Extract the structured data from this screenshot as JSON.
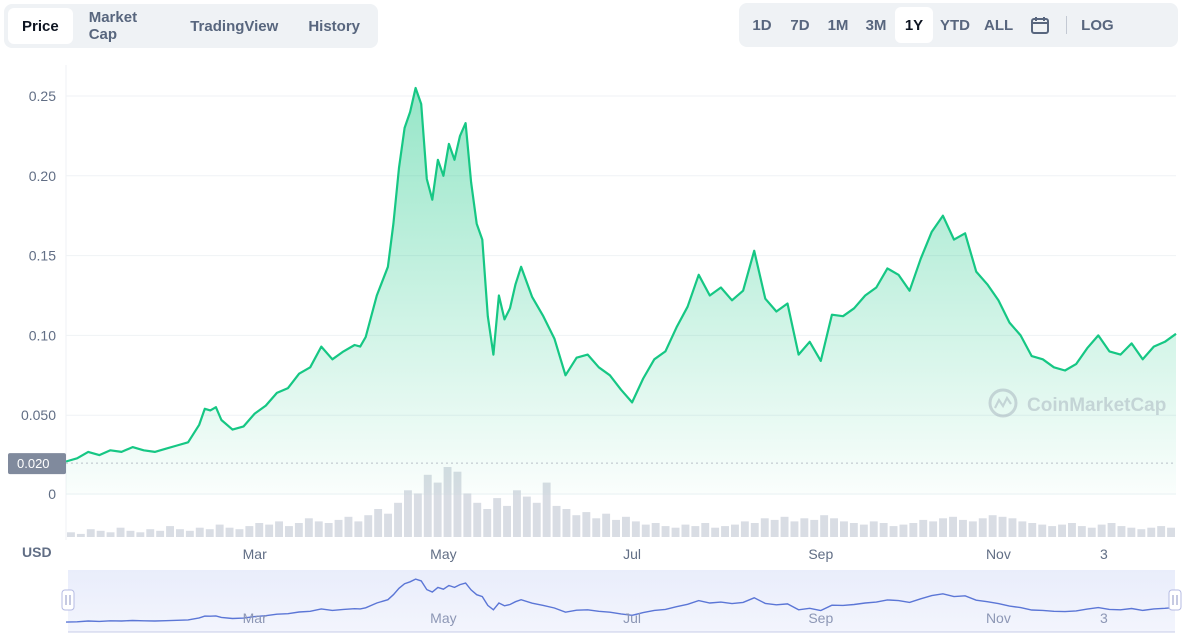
{
  "tabs": [
    {
      "label": "Price",
      "active": true
    },
    {
      "label": "Market Cap",
      "active": false
    },
    {
      "label": "TradingView",
      "active": false
    },
    {
      "label": "History",
      "active": false
    }
  ],
  "ranges": [
    {
      "label": "1D",
      "active": false
    },
    {
      "label": "7D",
      "active": false
    },
    {
      "label": "1M",
      "active": false
    },
    {
      "label": "3M",
      "active": false
    },
    {
      "label": "1Y",
      "active": true
    },
    {
      "label": "YTD",
      "active": false
    },
    {
      "label": "ALL",
      "active": false
    }
  ],
  "log_label": "LOG",
  "currency_label": "USD",
  "watermark": "CoinMarketCap",
  "current_tag": "0.020",
  "colors": {
    "line": "#16c784",
    "navigator": "#5b76d6",
    "tag": "#808a9d"
  },
  "chart_data": {
    "type": "area",
    "y_ticks": [
      "0.25",
      "0.20",
      "0.15",
      "0.10",
      "0.050",
      "0"
    ],
    "y_tick_values": [
      0.25,
      0.2,
      0.15,
      0.1,
      0.05,
      0
    ],
    "ylim": [
      0,
      0.25
    ],
    "x_ticks": [
      "Mar",
      "May",
      "Jul",
      "Sep",
      "Nov",
      "3"
    ],
    "x_tick_pos": [
      0.17,
      0.34,
      0.51,
      0.68,
      0.84,
      0.935
    ],
    "baseline": 0.02,
    "x": [
      0,
      0.01,
      0.02,
      0.03,
      0.04,
      0.05,
      0.06,
      0.07,
      0.08,
      0.09,
      0.1,
      0.11,
      0.12,
      0.125,
      0.13,
      0.135,
      0.14,
      0.15,
      0.16,
      0.17,
      0.18,
      0.19,
      0.2,
      0.21,
      0.22,
      0.23,
      0.24,
      0.25,
      0.26,
      0.265,
      0.27,
      0.28,
      0.29,
      0.295,
      0.3,
      0.305,
      0.31,
      0.315,
      0.32,
      0.325,
      0.33,
      0.335,
      0.34,
      0.345,
      0.35,
      0.355,
      0.36,
      0.365,
      0.37,
      0.375,
      0.38,
      0.385,
      0.39,
      0.395,
      0.4,
      0.405,
      0.41,
      0.42,
      0.43,
      0.44,
      0.45,
      0.46,
      0.47,
      0.48,
      0.49,
      0.5,
      0.51,
      0.52,
      0.53,
      0.54,
      0.55,
      0.56,
      0.57,
      0.58,
      0.59,
      0.6,
      0.61,
      0.62,
      0.63,
      0.64,
      0.65,
      0.66,
      0.67,
      0.68,
      0.69,
      0.7,
      0.71,
      0.72,
      0.73,
      0.74,
      0.75,
      0.76,
      0.77,
      0.78,
      0.79,
      0.8,
      0.81,
      0.82,
      0.83,
      0.84,
      0.85,
      0.86,
      0.87,
      0.88,
      0.89,
      0.9,
      0.91,
      0.92,
      0.93,
      0.94,
      0.95,
      0.96,
      0.97,
      0.98,
      0.99,
      1.0
    ],
    "y": [
      0.021,
      0.023,
      0.027,
      0.025,
      0.028,
      0.027,
      0.03,
      0.028,
      0.027,
      0.029,
      0.031,
      0.033,
      0.044,
      0.054,
      0.053,
      0.055,
      0.047,
      0.041,
      0.043,
      0.051,
      0.056,
      0.064,
      0.067,
      0.076,
      0.08,
      0.093,
      0.085,
      0.09,
      0.094,
      0.093,
      0.099,
      0.125,
      0.143,
      0.17,
      0.205,
      0.23,
      0.24,
      0.255,
      0.245,
      0.198,
      0.185,
      0.21,
      0.2,
      0.22,
      0.21,
      0.225,
      0.233,
      0.196,
      0.17,
      0.16,
      0.112,
      0.088,
      0.125,
      0.11,
      0.117,
      0.132,
      0.143,
      0.124,
      0.112,
      0.098,
      0.075,
      0.086,
      0.088,
      0.08,
      0.075,
      0.066,
      0.058,
      0.073,
      0.085,
      0.09,
      0.105,
      0.118,
      0.138,
      0.125,
      0.13,
      0.122,
      0.128,
      0.153,
      0.123,
      0.115,
      0.12,
      0.088,
      0.096,
      0.084,
      0.113,
      0.112,
      0.117,
      0.125,
      0.13,
      0.142,
      0.138,
      0.128,
      0.148,
      0.165,
      0.175,
      0.16,
      0.164,
      0.14,
      0.132,
      0.122,
      0.108,
      0.1,
      0.087,
      0.085,
      0.08,
      0.078,
      0.082,
      0.092,
      0.1,
      0.09,
      0.088,
      0.095,
      0.085,
      0.093,
      0.096,
      0.101
    ]
  },
  "volume_data": [
    3,
    2,
    5,
    4,
    3,
    6,
    4,
    3,
    5,
    4,
    7,
    5,
    4,
    6,
    5,
    8,
    6,
    5,
    7,
    9,
    8,
    10,
    7,
    9,
    12,
    10,
    9,
    11,
    13,
    10,
    14,
    18,
    15,
    22,
    30,
    28,
    40,
    35,
    45,
    42,
    28,
    22,
    18,
    25,
    20,
    30,
    26,
    22,
    35,
    20,
    18,
    14,
    16,
    12,
    15,
    11,
    13,
    10,
    8,
    9,
    7,
    6,
    8,
    7,
    9,
    6,
    7,
    8,
    10,
    9,
    12,
    11,
    13,
    10,
    12,
    11,
    14,
    12,
    10,
    9,
    8,
    10,
    9,
    7,
    8,
    9,
    11,
    10,
    12,
    13,
    11,
    10,
    12,
    14,
    13,
    12,
    10,
    9,
    8,
    7,
    8,
    9,
    7,
    6,
    8,
    9,
    7,
    6,
    5,
    6,
    7,
    6
  ],
  "navigator_labels": [
    "Mar",
    "May",
    "Jul",
    "Sep",
    "Nov",
    "3"
  ]
}
